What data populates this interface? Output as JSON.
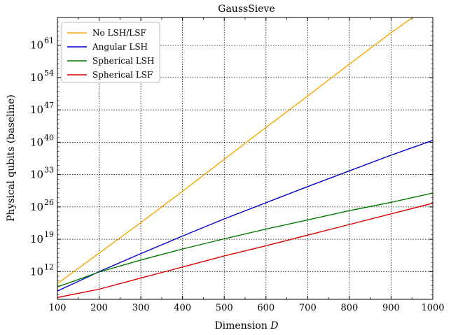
{
  "chart_data": {
    "type": "line",
    "title": "GaussSieve",
    "xlabel": "Dimension",
    "xlabel_var": "D",
    "ylabel": "Physical qubits (baseline)",
    "x_scale": "linear",
    "y_scale": "log",
    "xlim": [
      100,
      1000
    ],
    "ylim_exponents": [
      6,
      67
    ],
    "x_ticks": [
      "100",
      "200",
      "300",
      "400",
      "500",
      "600",
      "700",
      "800",
      "900",
      "1000"
    ],
    "y_ticks": [
      {
        "base": "10",
        "exp": "12",
        "value_exp": 12
      },
      {
        "base": "10",
        "exp": "19",
        "value_exp": 19
      },
      {
        "base": "10",
        "exp": "26",
        "value_exp": 26
      },
      {
        "base": "10",
        "exp": "33",
        "value_exp": 33
      },
      {
        "base": "10",
        "exp": "40",
        "value_exp": 40
      },
      {
        "base": "10",
        "exp": "47",
        "value_exp": 47
      },
      {
        "base": "10",
        "exp": "54",
        "value_exp": 54
      },
      {
        "base": "10",
        "exp": "61",
        "value_exp": 61
      }
    ],
    "grid": true,
    "legend_position": "top-left",
    "series": [
      {
        "name": "No LSH/LSF",
        "color": "#f5a800",
        "x": [
          100,
          200,
          300,
          400,
          500,
          600,
          700,
          800,
          900,
          1000
        ],
        "log10_y": [
          9.4,
          16.0,
          22.6,
          29.4,
          36.3,
          43.2,
          50.0,
          56.9,
          63.7,
          70.1
        ]
      },
      {
        "name": "Angular LSH",
        "color": "#0000cc",
        "x": [
          100,
          200,
          300,
          400,
          500,
          600,
          700,
          800,
          900,
          1000
        ],
        "log10_y": [
          7.8,
          12.0,
          15.9,
          19.7,
          23.4,
          26.9,
          30.4,
          33.8,
          37.2,
          40.4
        ]
      },
      {
        "name": "Spherical LSH",
        "color": "#007a00",
        "x": [
          100,
          200,
          300,
          400,
          500,
          600,
          700,
          800,
          900,
          1000
        ],
        "log10_y": [
          8.7,
          11.9,
          14.5,
          16.9,
          19.1,
          21.2,
          23.2,
          25.2,
          27.0,
          29.0
        ]
      },
      {
        "name": "Spherical LSF",
        "color": "#dd0000",
        "x": [
          100,
          200,
          300,
          400,
          500,
          600,
          700,
          800,
          900,
          1000
        ],
        "log10_y": [
          6.4,
          8.2,
          10.6,
          13.0,
          15.4,
          17.6,
          19.9,
          22.2,
          24.5,
          26.8
        ]
      }
    ]
  }
}
